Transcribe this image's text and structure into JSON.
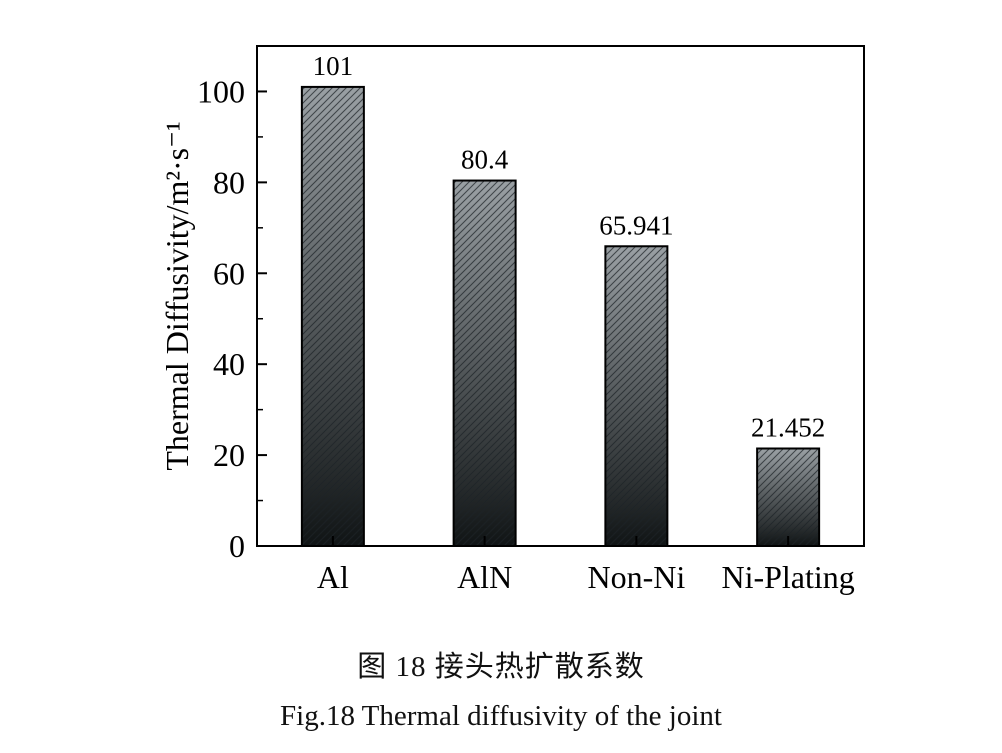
{
  "chart_data": {
    "type": "bar",
    "categories": [
      "Al",
      "AlN",
      "Non-Ni",
      "Ni-Plating"
    ],
    "values": [
      101,
      80.4,
      65.941,
      21.452
    ],
    "value_labels": [
      "101",
      "80.4",
      "65.941",
      "21.452"
    ],
    "title": "",
    "xlabel": "",
    "ylabel": "Thermal Diffusivity/m²·s⁻¹",
    "ylim": [
      0,
      110
    ],
    "yticks": [
      0,
      20,
      40,
      60,
      80,
      100
    ],
    "ytick_labels": [
      "0",
      "20",
      "40",
      "60",
      "80",
      "100"
    ],
    "grid": false,
    "legend": "none",
    "bar_fill": "diagonal hatch, grey fading to black",
    "bar_colors": {
      "top": "#9aa0a4",
      "bottom": "#101415",
      "hatch": "#1c2226",
      "edge": "#000000"
    }
  },
  "captions": {
    "cn": "图 18  接头热扩散系数",
    "en": "Fig.18  Thermal diffusivity of the joint"
  }
}
